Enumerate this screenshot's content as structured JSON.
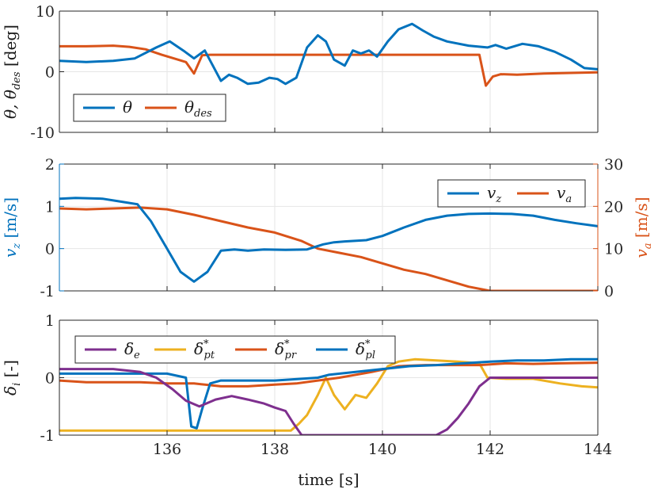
{
  "chart_data": [
    {
      "type": "line",
      "title": "",
      "xlabel": "",
      "ylabel_parts": {
        "main": "θ, θ",
        "sub": "des",
        "unit": " [deg]"
      },
      "xlim": [
        134,
        144
      ],
      "ylim": [
        -10,
        10
      ],
      "yticks": [
        -10,
        0,
        10
      ],
      "ytick_labels": [
        "-10",
        "0",
        "10"
      ],
      "xticks": [
        136,
        138,
        140,
        142,
        144
      ],
      "grid": true,
      "legend": {
        "placement": "bottom-left"
      },
      "series": [
        {
          "name": "θ",
          "label_main": "θ",
          "label_sub": "",
          "color": "#0072BD",
          "x": [
            134.0,
            134.5,
            135.0,
            135.4,
            135.8,
            136.05,
            136.3,
            136.5,
            136.7,
            136.85,
            137.0,
            137.15,
            137.3,
            137.5,
            137.7,
            137.9,
            138.05,
            138.2,
            138.4,
            138.6,
            138.8,
            138.95,
            139.1,
            139.3,
            139.45,
            139.6,
            139.75,
            139.9,
            140.1,
            140.3,
            140.55,
            140.75,
            140.95,
            141.2,
            141.6,
            141.95,
            142.1,
            142.3,
            142.6,
            142.9,
            143.2,
            143.5,
            143.75,
            144.0
          ],
          "y": [
            1.8,
            1.6,
            1.8,
            2.2,
            4.0,
            5.0,
            3.5,
            2.2,
            3.5,
            1.0,
            -1.5,
            -0.5,
            -1.0,
            -2.0,
            -1.8,
            -1.0,
            -1.2,
            -2.0,
            -1.0,
            4.0,
            6.0,
            5.0,
            2.0,
            1.0,
            3.5,
            3.0,
            3.5,
            2.5,
            5.0,
            7.0,
            7.9,
            6.8,
            5.8,
            5.0,
            4.3,
            4.0,
            4.4,
            3.8,
            4.6,
            4.2,
            3.3,
            2.0,
            0.6,
            0.4
          ]
        },
        {
          "name": "θ_des",
          "label_main": "θ",
          "label_sub": "des",
          "color": "#D95319",
          "x": [
            134.0,
            134.5,
            135.0,
            135.3,
            135.6,
            135.9,
            136.2,
            136.35,
            136.5,
            136.65,
            136.8,
            141.8,
            141.92,
            142.05,
            142.2,
            142.5,
            143.0,
            143.5,
            144.0
          ],
          "y": [
            4.2,
            4.2,
            4.3,
            4.1,
            3.7,
            2.8,
            2.0,
            1.6,
            -0.3,
            2.7,
            2.8,
            2.8,
            -2.3,
            -0.8,
            -0.4,
            -0.5,
            -0.3,
            -0.2,
            -0.1
          ]
        }
      ]
    },
    {
      "type": "line",
      "title": "",
      "xlabel": "",
      "ylabel_left_parts": {
        "main": "v",
        "sub": "z",
        "unit": " [m/s]"
      },
      "ylabel_right_parts": {
        "main": "v",
        "sub": "a",
        "unit": " [m/s]"
      },
      "xlim": [
        134,
        144
      ],
      "ylim_left": [
        -1,
        2
      ],
      "ylim_right": [
        0,
        30
      ],
      "yticks_left": [
        -1,
        0,
        1,
        2
      ],
      "ytick_labels_left": [
        "-1",
        "0",
        "1",
        "2"
      ],
      "yticks_right": [
        0,
        10,
        20,
        30
      ],
      "ytick_labels_right": [
        "0",
        "10",
        "20",
        "30"
      ],
      "left_axis_color": "#0072BD",
      "right_axis_color": "#D95319",
      "grid": true,
      "legend": {
        "placement": "top-right"
      },
      "series": [
        {
          "name": "v_z",
          "label_main": "v",
          "label_sub": "z",
          "axis": "left",
          "color": "#0072BD",
          "x": [
            134.0,
            134.3,
            134.8,
            135.2,
            135.45,
            135.7,
            136.0,
            136.25,
            136.5,
            136.75,
            137.0,
            137.25,
            137.5,
            137.8,
            138.2,
            138.6,
            138.9,
            139.1,
            139.3,
            139.7,
            140.0,
            140.4,
            140.8,
            141.2,
            141.6,
            142.0,
            142.4,
            142.8,
            143.2,
            143.6,
            144.0
          ],
          "y": [
            1.18,
            1.2,
            1.18,
            1.1,
            1.05,
            0.65,
            0.0,
            -0.55,
            -0.78,
            -0.55,
            -0.05,
            -0.02,
            -0.05,
            -0.02,
            -0.03,
            -0.02,
            0.1,
            0.15,
            0.17,
            0.2,
            0.3,
            0.5,
            0.68,
            0.78,
            0.82,
            0.83,
            0.82,
            0.78,
            0.68,
            0.6,
            0.53
          ]
        },
        {
          "name": "v_a",
          "label_main": "v",
          "label_sub": "a",
          "axis": "right",
          "color": "#D95319",
          "x": [
            134.0,
            134.5,
            135.0,
            135.5,
            136.0,
            136.5,
            137.0,
            137.5,
            138.0,
            138.5,
            138.8,
            139.2,
            139.6,
            140.0,
            140.4,
            140.8,
            141.2,
            141.6,
            142.0,
            142.5,
            143.0,
            143.5,
            144.0
          ],
          "y": [
            19.5,
            19.3,
            19.5,
            19.7,
            19.3,
            18.0,
            16.5,
            15.0,
            13.8,
            11.8,
            10.0,
            9.0,
            8.0,
            6.5,
            5.0,
            4.0,
            2.5,
            1.0,
            0.0,
            0.0,
            0.0,
            0.0,
            0.0
          ]
        }
      ]
    },
    {
      "type": "line",
      "title": "",
      "xlabel_parts": {
        "main": "time [s]"
      },
      "ylabel_parts": {
        "main": "δ",
        "sub": "i",
        "unit": " [-]"
      },
      "xlim": [
        134,
        144
      ],
      "ylim": [
        -1,
        1
      ],
      "yticks": [
        -1,
        0,
        1
      ],
      "ytick_labels": [
        "-1",
        "0",
        "1"
      ],
      "xticks": [
        136,
        138,
        140,
        142,
        144
      ],
      "xtick_labels": [
        "136",
        "138",
        "140",
        "142",
        "144"
      ],
      "grid": true,
      "legend": {
        "placement": "top-left",
        "columns": 4
      },
      "series": [
        {
          "name": "δ_e",
          "label_main": "δ",
          "label_sub": "e",
          "label_sup": "",
          "color": "#7E2F8E",
          "x": [
            134.0,
            134.5,
            135.0,
            135.5,
            135.8,
            136.1,
            136.35,
            136.6,
            136.9,
            137.2,
            137.5,
            137.8,
            138.0,
            138.2,
            138.35,
            138.5,
            139.0,
            140.0,
            141.0,
            141.2,
            141.4,
            141.6,
            141.8,
            142.0,
            142.5,
            143.0,
            144.0
          ],
          "y": [
            0.15,
            0.15,
            0.15,
            0.1,
            0.0,
            -0.2,
            -0.4,
            -0.5,
            -0.38,
            -0.32,
            -0.38,
            -0.45,
            -0.52,
            -0.58,
            -0.8,
            -1.0,
            -1.0,
            -1.0,
            -1.0,
            -0.9,
            -0.7,
            -0.45,
            -0.15,
            0.0,
            0.0,
            0.0,
            0.0
          ]
        },
        {
          "name": "δ*_pt",
          "label_main": "δ",
          "label_sub": "pt",
          "label_sup": "*",
          "color": "#EDB120",
          "x": [
            134.0,
            138.3,
            138.45,
            138.6,
            138.8,
            138.95,
            139.1,
            139.3,
            139.5,
            139.7,
            139.9,
            140.1,
            140.3,
            140.6,
            141.0,
            141.4,
            141.8,
            141.95,
            142.3,
            142.8,
            143.3,
            143.7,
            144.0
          ],
          "y": [
            -0.92,
            -0.92,
            -0.8,
            -0.65,
            -0.3,
            0.0,
            -0.3,
            -0.55,
            -0.3,
            -0.35,
            -0.1,
            0.2,
            0.28,
            0.32,
            0.3,
            0.28,
            0.25,
            0.0,
            -0.02,
            -0.02,
            -0.1,
            -0.15,
            -0.17
          ]
        },
        {
          "name": "δ*_pr",
          "label_main": "δ",
          "label_sub": "pr",
          "label_sup": "*",
          "color": "#D95319",
          "x": [
            134.0,
            134.5,
            135.0,
            135.5,
            136.0,
            136.5,
            137.0,
            137.5,
            138.0,
            138.4,
            138.8,
            139.2,
            139.8,
            140.3,
            140.8,
            141.3,
            141.8,
            142.3,
            142.8,
            143.3,
            144.0
          ],
          "y": [
            -0.05,
            -0.08,
            -0.08,
            -0.08,
            -0.1,
            -0.1,
            -0.15,
            -0.15,
            -0.12,
            -0.1,
            -0.05,
            0.0,
            0.1,
            0.2,
            0.22,
            0.22,
            0.22,
            0.25,
            0.24,
            0.25,
            0.26
          ]
        },
        {
          "name": "δ*_pl",
          "label_main": "δ",
          "label_sub": "pl",
          "label_sup": "*",
          "color": "#0072BD",
          "x": [
            134.0,
            135.0,
            136.0,
            136.35,
            136.45,
            136.55,
            136.65,
            136.8,
            137.0,
            137.5,
            138.0,
            138.5,
            138.8,
            139.0,
            139.5,
            140.0,
            140.5,
            141.0,
            141.5,
            142.0,
            142.5,
            143.0,
            143.5,
            144.0
          ],
          "y": [
            0.07,
            0.07,
            0.07,
            0.0,
            -0.85,
            -0.88,
            -0.55,
            -0.1,
            -0.05,
            -0.05,
            -0.05,
            -0.02,
            0.0,
            0.05,
            0.1,
            0.15,
            0.2,
            0.22,
            0.25,
            0.28,
            0.3,
            0.3,
            0.32,
            0.32
          ]
        }
      ]
    }
  ]
}
